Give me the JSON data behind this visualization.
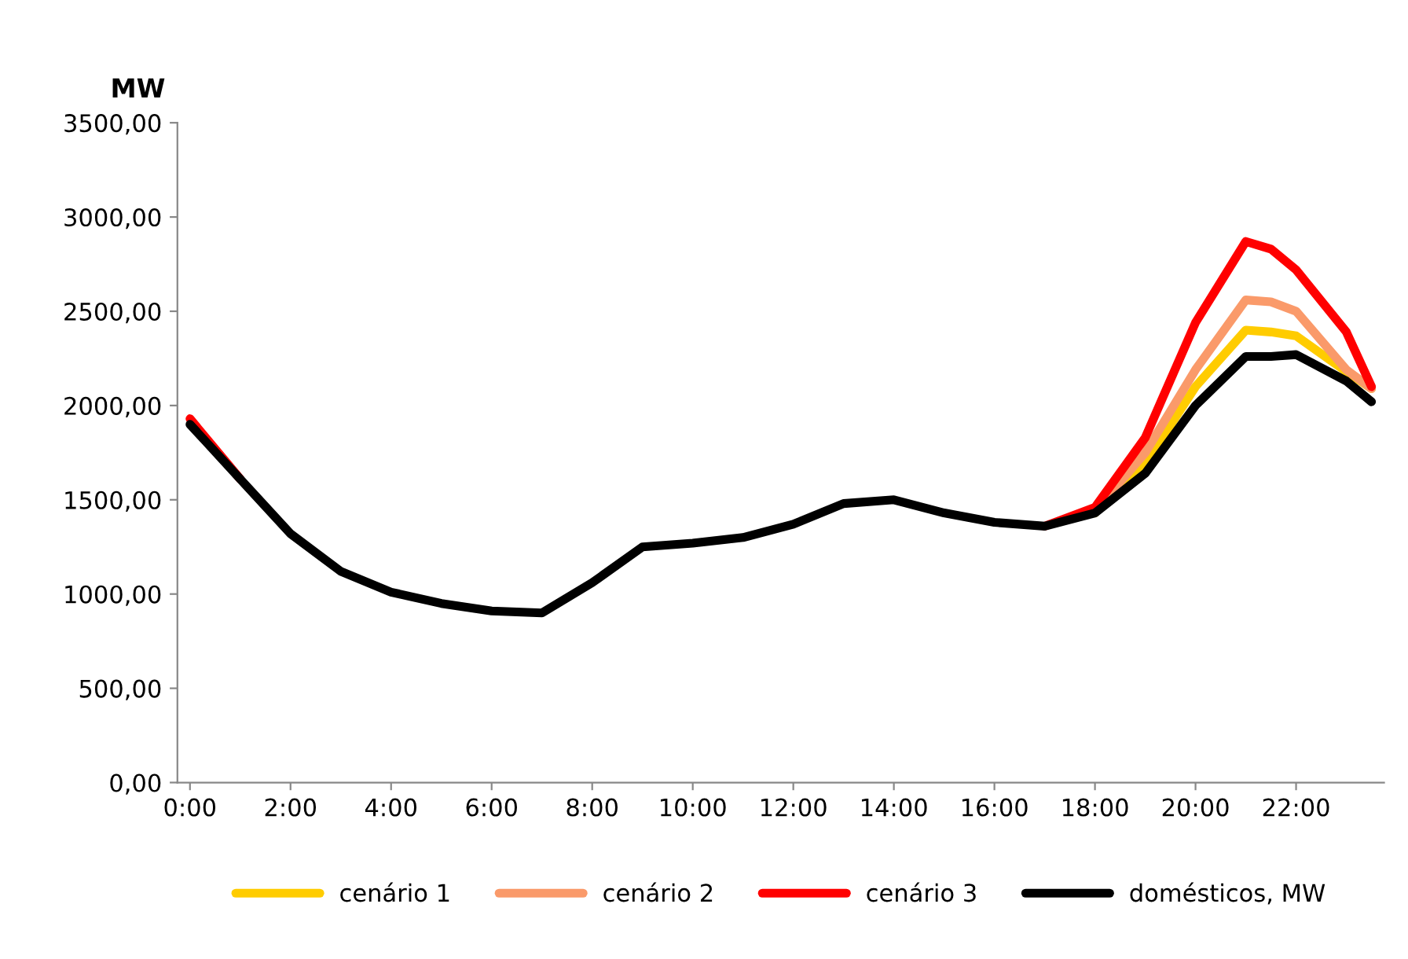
{
  "chart_data": {
    "type": "line",
    "ylabel": "MW",
    "x": [
      0,
      1,
      2,
      3,
      4,
      5,
      6,
      7,
      8,
      9,
      10,
      11,
      12,
      13,
      14,
      15,
      16,
      17,
      18,
      19,
      20,
      21,
      21.5,
      22,
      23,
      23.5
    ],
    "series": [
      {
        "name": "cenário 1",
        "color": "#ffcc00",
        "values": [
          null,
          null,
          null,
          null,
          null,
          null,
          null,
          null,
          null,
          null,
          null,
          null,
          null,
          null,
          null,
          null,
          null,
          null,
          1430,
          1690,
          2100,
          2400,
          2390,
          2370,
          2180,
          2090
        ]
      },
      {
        "name": "cenário 2",
        "color": "#fa9a6a",
        "values": [
          null,
          null,
          null,
          null,
          null,
          null,
          null,
          null,
          null,
          null,
          null,
          null,
          null,
          null,
          null,
          null,
          null,
          null,
          1440,
          1750,
          2190,
          2560,
          2550,
          2500,
          2190,
          2090
        ]
      },
      {
        "name": "cenário 3",
        "color": "#ff0000",
        "values": [
          1930,
          1610,
          null,
          null,
          null,
          null,
          null,
          null,
          null,
          null,
          null,
          null,
          null,
          null,
          null,
          null,
          null,
          1360,
          1460,
          1830,
          2440,
          2870,
          2830,
          2720,
          2390,
          2100
        ]
      },
      {
        "name": "domésticos, MW",
        "color": "#000000",
        "values": [
          1900,
          1610,
          1320,
          1120,
          1010,
          950,
          910,
          900,
          1060,
          1250,
          1270,
          1300,
          1370,
          1480,
          1500,
          1430,
          1380,
          1360,
          1430,
          1640,
          2000,
          2260,
          2260,
          2270,
          2130,
          2020
        ]
      }
    ],
    "xlim": [
      -0.25,
      23.75
    ],
    "xticks": [
      {
        "value": 0,
        "label": "0:00"
      },
      {
        "value": 2,
        "label": "2:00"
      },
      {
        "value": 4,
        "label": "4:00"
      },
      {
        "value": 6,
        "label": "6:00"
      },
      {
        "value": 8,
        "label": "8:00"
      },
      {
        "value": 10,
        "label": "10:00"
      },
      {
        "value": 12,
        "label": "12:00"
      },
      {
        "value": 14,
        "label": "14:00"
      },
      {
        "value": 16,
        "label": "16:00"
      },
      {
        "value": 18,
        "label": "18:00"
      },
      {
        "value": 20,
        "label": "20:00"
      },
      {
        "value": 22,
        "label": "22:00"
      }
    ],
    "ylim": [
      0,
      3500
    ],
    "yticks": [
      {
        "value": 0,
        "label": "0,00"
      },
      {
        "value": 500,
        "label": "500,00"
      },
      {
        "value": 1000,
        "label": "1000,00"
      },
      {
        "value": 1500,
        "label": "1500,00"
      },
      {
        "value": 2000,
        "label": "2000,00"
      },
      {
        "value": 2500,
        "label": "2500,00"
      },
      {
        "value": 3000,
        "label": "3000,00"
      },
      {
        "value": 3500,
        "label": "3500,00"
      }
    ],
    "grid": false,
    "legend": "bottom",
    "marker": "none",
    "line_style": "solid"
  }
}
